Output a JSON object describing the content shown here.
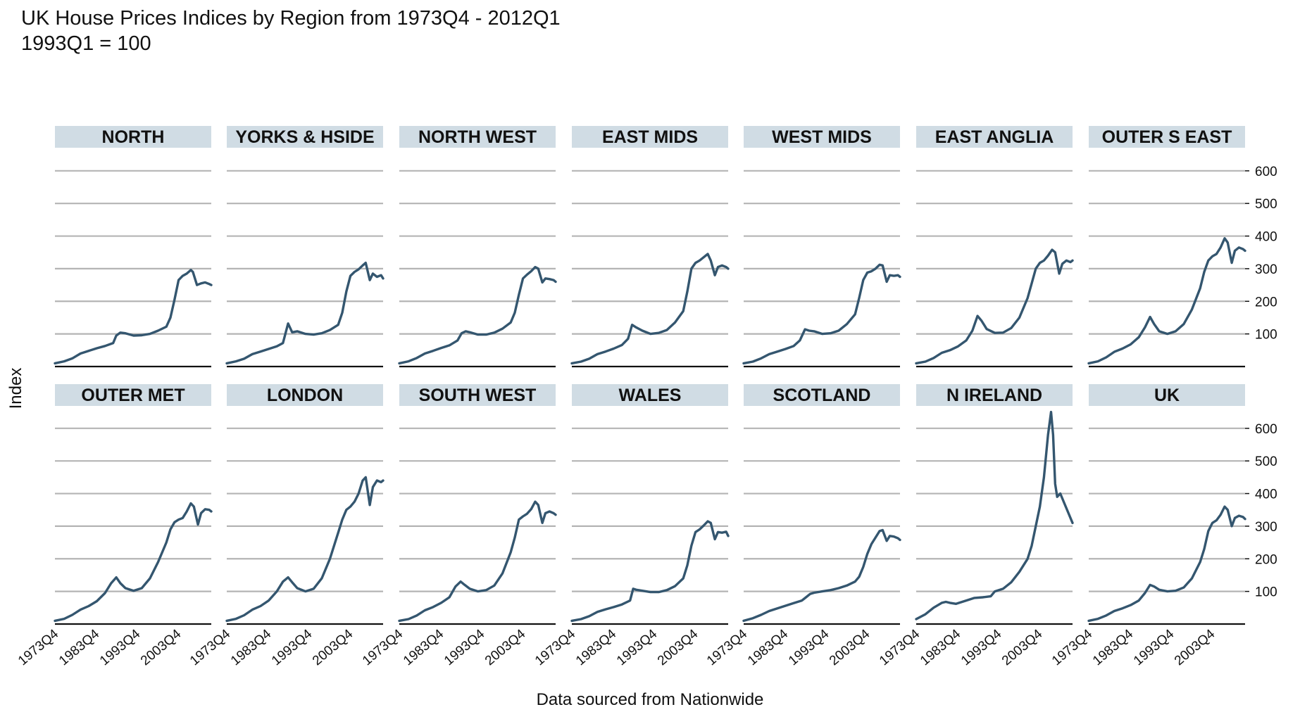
{
  "title": "UK House Prices Indices by Region from 1973Q4 - 2012Q1",
  "subtitle": "1993Q1 = 100",
  "chart_data": {
    "type": "line",
    "layout": "facet grid, 2 rows x 7 columns",
    "ylabel": "Index",
    "xlabel": "Data sourced from Nationwide",
    "xlim": [
      1973.75,
      2012.0
    ],
    "ylim": [
      0,
      660
    ],
    "y_ticks": [
      100,
      200,
      300,
      400,
      500,
      600
    ],
    "y_tick_labels": [
      "100",
      "200",
      "300",
      "400",
      "500",
      "600"
    ],
    "x_ticks": [
      1973.75,
      1983.75,
      1993.75,
      2003.75
    ],
    "x_tick_labels": [
      "1973Q4",
      "1983Q4",
      "1993Q4",
      "2003Q4"
    ],
    "grid": true,
    "line_color": "#34566f",
    "strip_color": "#d0dce4",
    "series": [
      {
        "name": "NORTH",
        "x": [
          1973.75,
          1976,
          1978,
          1980,
          1982,
          1984,
          1986,
          1988,
          1988.75,
          1989.75,
          1991,
          1993,
          1995,
          1997,
          1999,
          2001,
          2002,
          2003,
          2004,
          2005,
          2006,
          2007,
          2007.5,
          2008.5,
          2009.5,
          2010.5,
          2011.5,
          2012
        ],
        "y": [
          10,
          16,
          25,
          40,
          48,
          56,
          63,
          72,
          95,
          104,
          102,
          95,
          96,
          100,
          110,
          122,
          150,
          205,
          265,
          278,
          285,
          296,
          290,
          250,
          255,
          258,
          253,
          250
        ]
      },
      {
        "name": "YORKS & HSIDE",
        "x": [
          1973.75,
          1976,
          1978,
          1980,
          1982,
          1984,
          1986,
          1987.5,
          1988.75,
          1989.75,
          1991,
          1993,
          1995,
          1997,
          1999,
          2001,
          2002,
          2003,
          2004,
          2005,
          2006,
          2007,
          2007.75,
          2008.75,
          2009.5,
          2010.5,
          2011.5,
          2012
        ],
        "y": [
          10,
          16,
          24,
          38,
          46,
          54,
          62,
          72,
          132,
          105,
          108,
          100,
          98,
          102,
          112,
          128,
          165,
          230,
          278,
          290,
          298,
          310,
          318,
          265,
          285,
          275,
          280,
          270
        ]
      },
      {
        "name": "NORTH WEST",
        "x": [
          1973.75,
          1976,
          1978,
          1980,
          1982,
          1984,
          1986,
          1988,
          1989,
          1990,
          1991,
          1993,
          1995,
          1997,
          1999,
          2001,
          2002,
          2003,
          2004,
          2005,
          2006,
          2007,
          2007.75,
          2008.75,
          2009.5,
          2010.5,
          2011.5,
          2012
        ],
        "y": [
          10,
          16,
          26,
          40,
          48,
          57,
          65,
          80,
          102,
          108,
          105,
          98,
          98,
          104,
          116,
          135,
          165,
          220,
          270,
          282,
          292,
          305,
          300,
          258,
          270,
          268,
          265,
          260
        ]
      },
      {
        "name": "EAST MIDS",
        "x": [
          1973.75,
          1976,
          1978,
          1980,
          1982,
          1984,
          1986,
          1987.5,
          1988.5,
          1989.5,
          1991,
          1993,
          1995,
          1997,
          1999,
          2001,
          2002,
          2003,
          2004,
          2005,
          2006,
          2007,
          2007.75,
          2008.75,
          2009.5,
          2010.5,
          2011.5,
          2012
        ],
        "y": [
          10,
          15,
          24,
          38,
          46,
          55,
          66,
          85,
          128,
          120,
          110,
          100,
          103,
          112,
          135,
          170,
          230,
          300,
          318,
          325,
          335,
          345,
          325,
          280,
          305,
          310,
          305,
          300
        ]
      },
      {
        "name": "WEST MIDS",
        "x": [
          1973.75,
          1976,
          1978,
          1980,
          1982,
          1984,
          1986,
          1987.5,
          1988.75,
          1989.75,
          1991,
          1993,
          1995,
          1997,
          1999,
          2001,
          2002,
          2003,
          2004,
          2005,
          2006,
          2007,
          2007.75,
          2008.75,
          2009.5,
          2010.5,
          2011.5,
          2012
        ],
        "y": [
          10,
          15,
          25,
          38,
          46,
          54,
          63,
          80,
          114,
          110,
          108,
          100,
          102,
          110,
          130,
          160,
          210,
          265,
          288,
          292,
          300,
          312,
          310,
          260,
          280,
          278,
          280,
          275
        ]
      },
      {
        "name": "EAST ANGLIA",
        "x": [
          1973.75,
          1976,
          1978,
          1980,
          1982,
          1984,
          1986,
          1987.5,
          1988.75,
          1989.75,
          1991,
          1993,
          1995,
          1997,
          1999,
          2001,
          2002,
          2003,
          2004,
          2005,
          2006,
          2007,
          2007.75,
          2008.75,
          2009.5,
          2010.5,
          2011.5,
          2012
        ],
        "y": [
          10,
          15,
          26,
          42,
          50,
          62,
          80,
          110,
          155,
          140,
          115,
          103,
          104,
          118,
          150,
          210,
          255,
          300,
          318,
          325,
          340,
          358,
          350,
          285,
          315,
          325,
          320,
          325
        ]
      },
      {
        "name": "OUTER S EAST",
        "x": [
          1973.75,
          1976,
          1978,
          1980,
          1982,
          1984,
          1986,
          1987.5,
          1988.75,
          1989.75,
          1991,
          1993,
          1995,
          1997,
          1999,
          2001,
          2002,
          2003,
          2004,
          2005,
          2006,
          2007,
          2007.75,
          2008.75,
          2009.5,
          2010.5,
          2011.5,
          2012
        ],
        "y": [
          10,
          16,
          28,
          45,
          55,
          68,
          90,
          120,
          152,
          130,
          108,
          100,
          108,
          130,
          175,
          240,
          290,
          325,
          338,
          345,
          365,
          393,
          380,
          318,
          355,
          365,
          360,
          355
        ]
      },
      {
        "name": "OUTER MET",
        "x": [
          1973.75,
          1976,
          1978,
          1980,
          1982,
          1984,
          1986,
          1987.5,
          1988.75,
          1989.75,
          1991,
          1993,
          1995,
          1997,
          1999,
          2001,
          2002,
          2003,
          2004,
          2005,
          2006,
          2007,
          2007.75,
          2008.75,
          2009.5,
          2010.5,
          2011.5,
          2012
        ],
        "y": [
          10,
          16,
          28,
          44,
          55,
          70,
          95,
          125,
          143,
          125,
          110,
          102,
          110,
          140,
          190,
          250,
          290,
          312,
          320,
          325,
          345,
          370,
          360,
          305,
          340,
          352,
          350,
          345
        ]
      },
      {
        "name": "LONDON",
        "x": [
          1973.75,
          1976,
          1978,
          1980,
          1982,
          1984,
          1986,
          1987.5,
          1988.75,
          1989.75,
          1991,
          1993,
          1995,
          1997,
          1999,
          2001,
          2002,
          2003,
          2004,
          2005,
          2006,
          2007,
          2007.75,
          2008.75,
          2009.5,
          2010.5,
          2011.5,
          2012
        ],
        "y": [
          10,
          16,
          27,
          44,
          55,
          72,
          100,
          130,
          143,
          128,
          110,
          100,
          108,
          140,
          200,
          280,
          320,
          350,
          360,
          375,
          400,
          440,
          450,
          365,
          420,
          440,
          435,
          440
        ]
      },
      {
        "name": "SOUTH WEST",
        "x": [
          1973.75,
          1976,
          1978,
          1980,
          1982,
          1984,
          1986,
          1987.5,
          1988.75,
          1989.75,
          1991,
          1993,
          1995,
          1997,
          1999,
          2001,
          2002,
          2003,
          2004,
          2005,
          2006,
          2007,
          2007.75,
          2008.75,
          2009.5,
          2010.5,
          2011.5,
          2012
        ],
        "y": [
          10,
          15,
          26,
          42,
          52,
          65,
          82,
          115,
          130,
          120,
          108,
          100,
          104,
          118,
          155,
          220,
          265,
          320,
          330,
          338,
          352,
          375,
          365,
          310,
          340,
          345,
          340,
          335
        ]
      },
      {
        "name": "WALES",
        "x": [
          1973.75,
          1976,
          1978,
          1980,
          1982,
          1984,
          1986,
          1988,
          1988.75,
          1989.5,
          1991,
          1993,
          1995,
          1997,
          1999,
          2001,
          2002,
          2003,
          2004,
          2005,
          2006,
          2007,
          2007.75,
          2008.75,
          2009.5,
          2010.5,
          2011.5,
          2012
        ],
        "y": [
          10,
          15,
          24,
          37,
          45,
          52,
          60,
          72,
          108,
          105,
          102,
          98,
          98,
          104,
          116,
          140,
          180,
          240,
          282,
          290,
          302,
          315,
          310,
          260,
          282,
          280,
          283,
          270
        ]
      },
      {
        "name": "SCOTLAND",
        "x": [
          1973.75,
          1976,
          1978,
          1980,
          1982,
          1984,
          1986,
          1988,
          1989,
          1990,
          1991,
          1993,
          1995,
          1997,
          1999,
          2001,
          2002,
          2003,
          2004,
          2005,
          2006,
          2007,
          2007.75,
          2008.75,
          2009.5,
          2010.5,
          2011.5,
          2012
        ],
        "y": [
          10,
          18,
          28,
          40,
          48,
          56,
          64,
          72,
          82,
          92,
          96,
          100,
          104,
          110,
          118,
          130,
          145,
          175,
          215,
          245,
          265,
          285,
          288,
          255,
          270,
          268,
          263,
          258
        ]
      },
      {
        "name": "N IRELAND",
        "x": [
          1973.75,
          1976,
          1978,
          1980,
          1981,
          1982,
          1983.5,
          1986,
          1988,
          1990,
          1992,
          1993,
          1995,
          1997,
          1999,
          2001,
          2002,
          2003,
          2004,
          2005,
          2006,
          2006.75,
          2007.25,
          2007.75,
          2008.25,
          2009,
          2010,
          2011,
          2012
        ],
        "y": [
          15,
          30,
          50,
          65,
          68,
          65,
          62,
          72,
          80,
          82,
          85,
          100,
          108,
          128,
          160,
          200,
          240,
          300,
          360,
          450,
          580,
          650,
          580,
          430,
          390,
          400,
          370,
          340,
          310
        ]
      },
      {
        "name": "UK",
        "x": [
          1973.75,
          1976,
          1978,
          1980,
          1982,
          1984,
          1986,
          1987.5,
          1988.75,
          1989.75,
          1991,
          1993,
          1995,
          1997,
          1999,
          2001,
          2002,
          2003,
          2004,
          2005,
          2006,
          2007,
          2007.75,
          2008.75,
          2009.5,
          2010.5,
          2011.5,
          2012
        ],
        "y": [
          10,
          16,
          26,
          40,
          48,
          58,
          72,
          95,
          120,
          115,
          105,
          100,
          102,
          112,
          140,
          190,
          230,
          285,
          310,
          318,
          335,
          360,
          350,
          300,
          325,
          332,
          328,
          322
        ]
      }
    ]
  }
}
